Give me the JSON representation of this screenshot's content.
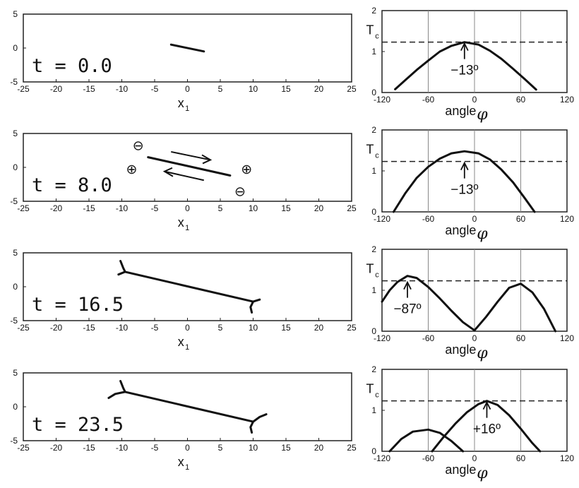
{
  "chart_data": [
    {
      "type": "line",
      "xlim": [
        -25,
        25
      ],
      "ylim": [
        -5,
        5
      ],
      "x_ticks": [
        "-25",
        "-20",
        "-15",
        "-10",
        "-5",
        "0",
        "5",
        "10",
        "15",
        "20",
        "25"
      ],
      "y_ticks": [
        "5",
        "0",
        "-5"
      ],
      "xlabel_main": "x",
      "xlabel_sub": "1",
      "annotation": "t = 0.0",
      "series": [
        {
          "points": [
            [
              -2.5,
              0.5
            ],
            [
              2.5,
              -0.5
            ]
          ]
        }
      ]
    },
    {
      "type": "line",
      "xlim": [
        -120,
        120
      ],
      "ylim": [
        0,
        2
      ],
      "x_ticks": [
        "-120",
        "-60",
        "0",
        "60",
        "120"
      ],
      "y_ticks": [
        "2",
        "1",
        "0"
      ],
      "xlabel": "angle",
      "xlabel_symbol": "φ",
      "threshold_label": "T",
      "threshold_sub": "c",
      "threshold": 1.23,
      "arrow_x": -13,
      "arrow_label": "−13º",
      "series": [
        {
          "x": [
            -103,
            -90,
            -75,
            -60,
            -45,
            -30,
            -13,
            5,
            20,
            35,
            50,
            65,
            80
          ],
          "y": [
            0.08,
            0.3,
            0.55,
            0.78,
            1.0,
            1.14,
            1.23,
            1.17,
            1.02,
            0.82,
            0.58,
            0.33,
            0.07
          ]
        }
      ]
    },
    {
      "type": "line",
      "xlim": [
        -25,
        25
      ],
      "ylim": [
        -5,
        5
      ],
      "x_ticks": [
        "-25",
        "-20",
        "-15",
        "-10",
        "-5",
        "0",
        "5",
        "10",
        "15",
        "20",
        "25"
      ],
      "y_ticks": [
        "5",
        "0",
        "-5"
      ],
      "xlabel_main": "x",
      "xlabel_sub": "1",
      "annotation": "t = 8.0",
      "symbols": [
        "⊖",
        "⊕",
        "⊕",
        "⊖"
      ],
      "series": [
        {
          "points": [
            [
              -6.0,
              1.5
            ],
            [
              6.5,
              -1.2
            ]
          ]
        }
      ]
    },
    {
      "type": "line",
      "xlim": [
        -120,
        120
      ],
      "ylim": [
        0,
        2
      ],
      "x_ticks": [
        "-120",
        "-60",
        "0",
        "60",
        "120"
      ],
      "y_ticks": [
        "2",
        "1",
        "0"
      ],
      "xlabel": "angle",
      "xlabel_symbol": "φ",
      "threshold_label": "T",
      "threshold_sub": "c",
      "threshold": 1.23,
      "arrow_x": -13,
      "arrow_label": "−13º",
      "series": [
        {
          "x": [
            -105,
            -90,
            -75,
            -60,
            -45,
            -30,
            -13,
            5,
            20,
            35,
            50,
            65,
            78
          ],
          "y": [
            0.0,
            0.45,
            0.83,
            1.1,
            1.3,
            1.43,
            1.48,
            1.43,
            1.28,
            1.03,
            0.72,
            0.34,
            0.0
          ]
        }
      ]
    },
    {
      "type": "line",
      "xlim": [
        -25,
        25
      ],
      "ylim": [
        -5,
        5
      ],
      "x_ticks": [
        "-25",
        "-20",
        "-15",
        "-10",
        "-5",
        "0",
        "5",
        "10",
        "15",
        "20",
        "25"
      ],
      "y_ticks": [
        "5",
        "0",
        "-5"
      ],
      "xlabel_main": "x",
      "xlabel_sub": "1",
      "annotation": "t = 16.5",
      "series": [
        {
          "points": [
            [
              -9.5,
              2.2
            ],
            [
              10.0,
              -2.2
            ]
          ]
        },
        {
          "points": [
            [
              -9.5,
              2.2
            ],
            [
              -9.8,
              2.8
            ],
            [
              -10.2,
              3.8
            ]
          ]
        },
        {
          "points": [
            [
              -9.5,
              2.2
            ],
            [
              -10.5,
              1.8
            ]
          ]
        },
        {
          "points": [
            [
              10.0,
              -2.2
            ],
            [
              9.6,
              -3.0
            ],
            [
              9.8,
              -3.8
            ]
          ]
        },
        {
          "points": [
            [
              10.0,
              -2.2
            ],
            [
              11.0,
              -1.9
            ]
          ]
        }
      ]
    },
    {
      "type": "line",
      "xlim": [
        -120,
        120
      ],
      "ylim": [
        0,
        2
      ],
      "x_ticks": [
        "-120",
        "-60",
        "0",
        "60",
        "120"
      ],
      "y_ticks": [
        "2",
        "1",
        "0"
      ],
      "xlabel": "angle",
      "xlabel_symbol": "φ",
      "threshold_label": "T",
      "threshold_sub": "c",
      "threshold": 1.23,
      "arrow_x": -87,
      "arrow_label": "−87º",
      "series": [
        {
          "x": [
            -120,
            -110,
            -100,
            -87,
            -75,
            -60,
            -45,
            -30,
            -15,
            0
          ],
          "y": [
            0.72,
            1.0,
            1.2,
            1.35,
            1.3,
            1.08,
            0.8,
            0.5,
            0.22,
            0.02
          ]
        },
        {
          "x": [
            0,
            15,
            30,
            45,
            60,
            75,
            90,
            105
          ],
          "y": [
            0.02,
            0.35,
            0.72,
            1.06,
            1.16,
            0.95,
            0.55,
            0.0
          ]
        }
      ]
    },
    {
      "type": "line",
      "xlim": [
        -25,
        25
      ],
      "ylim": [
        -5,
        5
      ],
      "x_ticks": [
        "-25",
        "-20",
        "-15",
        "-10",
        "-5",
        "0",
        "5",
        "10",
        "15",
        "20",
        "25"
      ],
      "y_ticks": [
        "5",
        "0",
        "-5"
      ],
      "xlabel_main": "x",
      "xlabel_sub": "1",
      "annotation": "t = 23.5",
      "series": [
        {
          "points": [
            [
              -9.5,
              2.2
            ],
            [
              10.0,
              -2.2
            ]
          ]
        },
        {
          "points": [
            [
              -9.5,
              2.2
            ],
            [
              -9.8,
              2.8
            ],
            [
              -10.2,
              3.8
            ]
          ]
        },
        {
          "points": [
            [
              -9.5,
              2.2
            ],
            [
              -11.0,
              1.9
            ],
            [
              -12.0,
              1.3
            ]
          ]
        },
        {
          "points": [
            [
              10.0,
              -2.2
            ],
            [
              9.6,
              -3.0
            ],
            [
              9.8,
              -3.8
            ]
          ]
        },
        {
          "points": [
            [
              10.0,
              -2.2
            ],
            [
              11.0,
              -1.5
            ],
            [
              12.0,
              -1.1
            ]
          ]
        }
      ]
    },
    {
      "type": "line",
      "xlim": [
        -120,
        120
      ],
      "ylim": [
        0,
        2
      ],
      "x_ticks": [
        "-120",
        "-60",
        "0",
        "60",
        "120"
      ],
      "y_ticks": [
        "2",
        "1",
        "0"
      ],
      "xlabel": "angle",
      "xlabel_symbol": "φ",
      "threshold_label": "T",
      "threshold_sub": "c",
      "threshold": 1.23,
      "arrow_x": 16,
      "arrow_label": "+16º",
      "series": [
        {
          "x": [
            -110,
            -95,
            -80,
            -60,
            -45,
            -30,
            -15
          ],
          "y": [
            0.0,
            0.3,
            0.48,
            0.53,
            0.45,
            0.25,
            0.0
          ]
        },
        {
          "x": [
            -55,
            -40,
            -25,
            -10,
            5,
            16,
            30,
            45,
            60,
            75,
            85
          ],
          "y": [
            0.0,
            0.35,
            0.67,
            0.95,
            1.15,
            1.23,
            1.13,
            0.88,
            0.55,
            0.2,
            0.0
          ]
        }
      ]
    }
  ]
}
